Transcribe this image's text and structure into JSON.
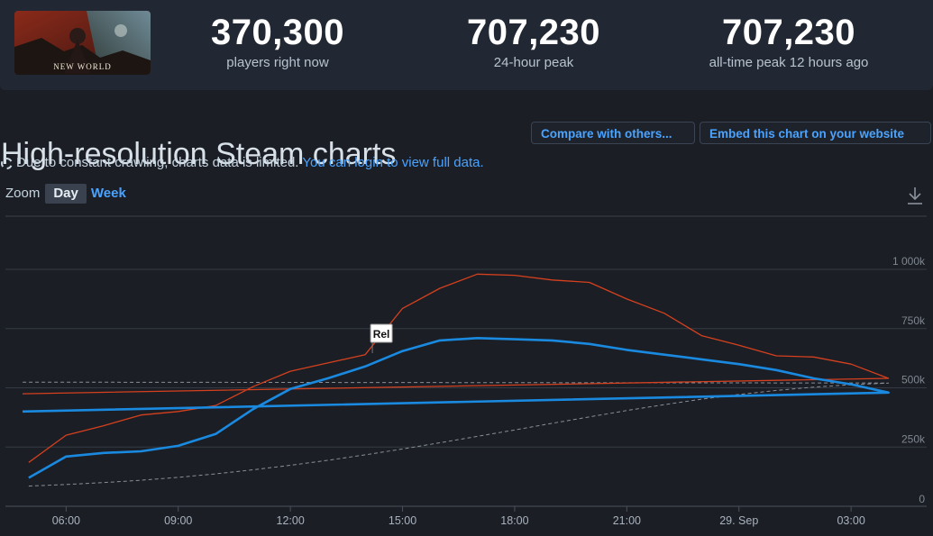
{
  "header": {
    "game_name": "NEW WORLD",
    "stats": [
      {
        "value": "370,300",
        "label": "players right now"
      },
      {
        "value": "707,230",
        "label": "24-hour peak"
      },
      {
        "value": "707,230",
        "label": "all-time peak 12 hours ago"
      }
    ]
  },
  "section": {
    "title": "High-resolution Steam charts",
    "compare_label": "Compare with others...",
    "embed_label": "Embed this chart on your website",
    "notice_text": "Due to constant crawling, charts data is limited.",
    "notice_link": "You can login to view full data."
  },
  "zoom": {
    "label": "Zoom",
    "options": [
      "Day",
      "Week"
    ],
    "selected": "Day"
  },
  "icons": [
    "loading-ring-icon",
    "download-icon",
    "game-thumbnail"
  ],
  "colors": {
    "background": "#1b1e25",
    "accent": "#4aa3ff",
    "series_players": "#1a8ae0",
    "series_twitch": "#d5401e",
    "series_trend": "#8a8f96"
  },
  "chart_data": {
    "type": "line",
    "x_ticks": [
      "06:00",
      "09:00",
      "12:00",
      "15:00",
      "18:00",
      "21:00",
      "29. Sep",
      "03:00"
    ],
    "y_ticks": [
      "0",
      "250k",
      "500k",
      "750k",
      "1 000k"
    ],
    "ylim": [
      0,
      1000000
    ],
    "grid": true,
    "annotation": {
      "label": "Rel",
      "x": "14:00"
    },
    "x": [
      "05:00",
      "06:00",
      "07:00",
      "08:00",
      "09:00",
      "10:00",
      "11:00",
      "12:00",
      "13:00",
      "14:00",
      "15:00",
      "16:00",
      "17:00",
      "18:00",
      "19:00",
      "20:00",
      "21:00",
      "22:00",
      "23:00",
      "00:00",
      "01:00",
      "02:00",
      "03:00",
      "04:00",
      "04:50"
    ],
    "series": [
      {
        "values": [
          120000,
          210000,
          225000,
          232000,
          255000,
          305000,
          410000,
          495000,
          540000,
          590000,
          655000,
          700000,
          710000,
          705000,
          700000,
          685000,
          660000,
          640000,
          620000,
          600000,
          575000,
          540000,
          515000,
          480000,
          400000
        ]
      },
      {
        "values": [
          185000,
          300000,
          340000,
          385000,
          400000,
          425000,
          505000,
          570000,
          605000,
          640000,
          835000,
          920000,
          980000,
          975000,
          955000,
          945000,
          875000,
          815000,
          720000,
          680000,
          635000,
          630000,
          600000,
          540000,
          475000
        ]
      },
      {
        "values": [
          85000,
          92000,
          100000,
          110000,
          122000,
          137000,
          154000,
          173000,
          194000,
          217000,
          242000,
          268000,
          295000,
          322000,
          350000,
          377000,
          404000,
          429000,
          452000,
          472000,
          489000,
          503000,
          513000,
          520000,
          524000
        ]
      }
    ]
  }
}
